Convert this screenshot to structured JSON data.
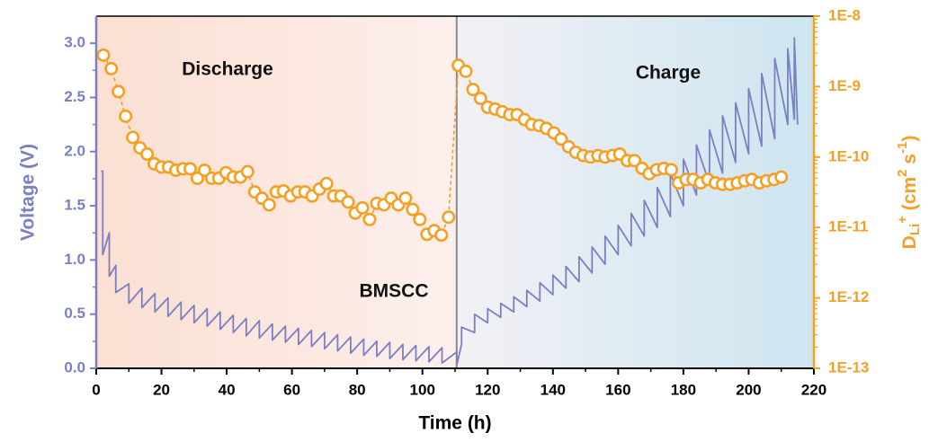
{
  "chart_data": {
    "type": "line",
    "xlabel": "Time (h)",
    "ylabel": "Voltage (V)",
    "y2label_parts": [
      {
        "text": "D"
      },
      {
        "text": "Li",
        "shift": "sub"
      },
      {
        "text": "+",
        "shift": "sup"
      },
      {
        "text": " (cm"
      },
      {
        "text": "2",
        "shift": "sup"
      },
      {
        "text": " s"
      },
      {
        "text": "-1",
        "shift": "sup"
      },
      {
        "text": ")"
      }
    ],
    "annotations": [
      "Discharge",
      "Charge",
      "BMSCC"
    ],
    "xlim": [
      0,
      220
    ],
    "xticks": [
      0,
      20,
      40,
      60,
      80,
      100,
      120,
      140,
      160,
      180,
      200,
      220
    ],
    "ylim": [
      0,
      3.25
    ],
    "yticks": [
      {
        "value": 0,
        "label": "0.0"
      },
      0.5,
      {
        "value": 1,
        "label": "1.0"
      },
      1.5,
      {
        "value": 2,
        "label": "2.0"
      },
      2.5,
      {
        "value": 3,
        "label": "3.0"
      }
    ],
    "y2lim": [
      1e-13,
      1e-08
    ],
    "y2log": true,
    "y2ticks": [
      {
        "value": 1e-13,
        "label": "1E-13"
      },
      {
        "value": 1e-12,
        "label": "1E-12"
      },
      {
        "value": 1e-11,
        "label": "1E-11"
      },
      {
        "value": 1e-10,
        "label": "1E-10"
      },
      {
        "value": 1e-09,
        "label": "1E-9"
      },
      {
        "value": 1e-08,
        "label": "1E-8"
      }
    ],
    "ycolor": "#7b7fc4",
    "y2color": "#f5a024",
    "series": [
      {
        "color": "#7b7fc4",
        "axis": "y",
        "x": [
          1.5,
          2,
          2,
          4,
          4,
          6,
          6,
          10,
          10,
          14,
          14,
          18,
          18,
          22,
          22,
          26,
          26,
          30,
          30,
          34,
          34,
          38,
          38,
          42,
          42,
          46,
          46,
          50,
          50,
          54,
          54,
          58,
          58,
          62,
          62,
          66,
          66,
          70,
          70,
          74,
          74,
          78,
          78,
          82,
          82,
          86,
          86,
          90,
          90,
          94,
          94,
          98,
          98,
          102,
          102,
          106,
          106,
          110.5,
          110.5,
          112,
          112,
          116,
          116,
          120,
          120,
          124,
          124,
          128,
          128,
          132,
          132,
          136,
          136,
          140,
          140,
          144,
          144,
          148,
          148,
          152,
          152,
          156,
          156,
          160,
          160,
          164,
          164,
          168,
          168,
          172,
          172,
          176,
          176,
          180,
          180,
          184,
          184,
          188,
          188,
          192,
          192,
          196,
          196,
          200,
          200,
          204,
          204,
          208,
          208,
          212,
          212,
          214,
          214,
          215
        ],
        "values": [
          1.82,
          1.82,
          1.05,
          1.25,
          0.85,
          0.95,
          0.7,
          0.78,
          0.6,
          0.74,
          0.56,
          0.69,
          0.52,
          0.65,
          0.48,
          0.61,
          0.45,
          0.58,
          0.42,
          0.55,
          0.39,
          0.52,
          0.36,
          0.49,
          0.33,
          0.46,
          0.3,
          0.44,
          0.28,
          0.41,
          0.26,
          0.39,
          0.24,
          0.37,
          0.22,
          0.35,
          0.2,
          0.33,
          0.18,
          0.31,
          0.16,
          0.29,
          0.14,
          0.27,
          0.12,
          0.25,
          0.11,
          0.24,
          0.09,
          0.22,
          0.08,
          0.21,
          0.07,
          0.2,
          0.06,
          0.19,
          0.05,
          0.15,
          0.03,
          0.22,
          0.38,
          0.33,
          0.5,
          0.42,
          0.55,
          0.47,
          0.6,
          0.52,
          0.66,
          0.57,
          0.72,
          0.62,
          0.79,
          0.68,
          0.86,
          0.74,
          0.94,
          0.8,
          1.03,
          0.88,
          1.12,
          0.96,
          1.22,
          1.05,
          1.32,
          1.13,
          1.43,
          1.22,
          1.55,
          1.3,
          1.67,
          1.4,
          1.8,
          1.5,
          1.93,
          1.6,
          2.06,
          1.7,
          2.2,
          1.8,
          2.33,
          1.9,
          2.45,
          1.98,
          2.58,
          2.05,
          2.72,
          2.12,
          2.86,
          2.25,
          2.95,
          2.3,
          3.05,
          2.25
        ]
      },
      {
        "color": "#f5a024",
        "axis": "y2",
        "marker": "circle",
        "dashed": true,
        "x": [
          2.2,
          4.6,
          6.8,
          9,
          11.2,
          13.4,
          15.6,
          17.8,
          20,
          22.2,
          24.4,
          26.6,
          28.8,
          31,
          33.2,
          35.4,
          37.6,
          39.8,
          42,
          44.2,
          46.4,
          48.6,
          50.8,
          53,
          55.2,
          57.4,
          59.6,
          61.8,
          64,
          66.2,
          68.4,
          70.6,
          72.8,
          75,
          77.2,
          79.4,
          81.6,
          83.8,
          86,
          88.2,
          90.4,
          92.6,
          94.8,
          97,
          99.2,
          101.4,
          103.6,
          105.8,
          108,
          111,
          113.3,
          115.5,
          117.8,
          120,
          122.3,
          124.5,
          126.8,
          129,
          131.3,
          133.5,
          135.8,
          138,
          140.3,
          142.5,
          144.8,
          147,
          149.3,
          151.5,
          153.8,
          156,
          158.3,
          160.5,
          162.8,
          165,
          167.3,
          169.5,
          171.8,
          174,
          176.3,
          178.5,
          180.8,
          183,
          185.3,
          187.5,
          189.8,
          192,
          194.3,
          196.5,
          198.8,
          201,
          203.3,
          205.5,
          207.8,
          210
        ],
        "values": [
          2.8e-09,
          1.8e-09,
          8.5e-10,
          3.8e-10,
          1.9e-10,
          1.35e-10,
          1.1e-10,
          8e-11,
          7.2e-11,
          7.2e-11,
          6.5e-11,
          6.8e-11,
          6.8e-11,
          5e-11,
          6.5e-11,
          5e-11,
          5e-11,
          6e-11,
          5.2e-11,
          5.2e-11,
          6.2e-11,
          3.2e-11,
          2.6e-11,
          2.1e-11,
          3.2e-11,
          3.3e-11,
          2.8e-11,
          3.2e-11,
          3.2e-11,
          2.8e-11,
          3.5e-11,
          4.2e-11,
          2.8e-11,
          2.8e-11,
          2.3e-11,
          1.6e-11,
          1.9e-11,
          1.3e-11,
          2.2e-11,
          2.1e-11,
          2.6e-11,
          2.1e-11,
          2.6e-11,
          1.8e-11,
          1.3e-11,
          8e-12,
          9e-12,
          7.8e-12,
          1.4e-11,
          2e-09,
          1.65e-09,
          9.1e-10,
          6.8e-10,
          5.1e-10,
          4.8e-10,
          4.4e-10,
          4e-10,
          4e-10,
          3.4e-10,
          2.9e-10,
          2.8e-10,
          2.55e-10,
          2.2e-10,
          1.8e-10,
          1.4e-10,
          1.17e-10,
          1.05e-10,
          1e-10,
          1.05e-10,
          1e-10,
          1.05e-10,
          1.1e-10,
          8.9e-11,
          8.9e-11,
          6.9e-11,
          5.8e-11,
          6.6e-11,
          6.9e-11,
          6.6e-11,
          4.3e-11,
          4.8e-11,
          4.8e-11,
          4.3e-11,
          4.8e-11,
          4.3e-11,
          4.1e-11,
          4.1e-11,
          4.3e-11,
          4.6e-11,
          4.8e-11,
          4.3e-11,
          4.6e-11,
          4.8e-11,
          5.2e-11
        ]
      }
    ]
  }
}
